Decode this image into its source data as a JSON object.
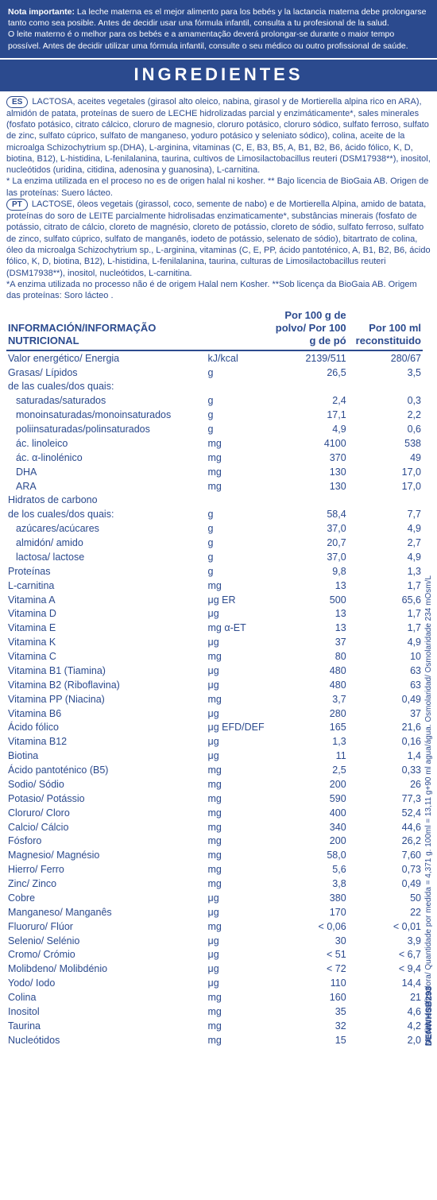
{
  "notice": {
    "label": "Nota importante:",
    "text_es": "La leche materna es el mejor alimento para los bebés y la lactancia materna debe prolongarse tanto como sea posible. Antes de decidir usar una fórmula infantil, consulta a tu profesional de la salud.",
    "text_pt": "O leite materno é o melhor para os bebés e a amamentação deverá prolongar-se durante o maior tempo possível. Antes de decidir utilizar uma fórmula infantil, consulte o seu médico ou outro profissional de saúde."
  },
  "header": "INGREDIENTES",
  "ingredients": {
    "es_tag": "ES",
    "es_text": "LACTOSA, aceites vegetales (girasol alto oleico, nabina, girasol y de Mortierella alpina rico en ARA), almidón de patata, proteínas de suero de LECHE hidrolizadas parcial y enzimáticamente*, sales minerales (fosfato potásico, citrato cálcico, cloruro de magnesio, cloruro potásico, cloruro sódico, sulfato ferroso, sulfato de zinc, sulfato cúprico, sulfato de manganeso, yoduro potásico y seleniato sódico), colina, aceite de la microalga Schizochytrium sp.(DHA), L-arginina, vitaminas (C, E, B3, B5, A, B1, B2, B6, ácido fólico, K, D, biotina, B12), L-histidina, L-fenilalanina, taurina, cultivos de Limosilactobacillus reuteri (DSM17938**), inositol, nucleótidos (uridina, citidina, adenosina y guanosina), L-carnitina.",
    "es_note": "* La enzima utilizada en el proceso no es de origen halal ni kosher. ** Bajo licencia de BioGaia AB. Origen de las proteínas: Suero lácteo.",
    "pt_tag": "PT",
    "pt_text": "LACTOSE, óleos vegetais (girassol, coco, semente de nabo) e de Mortierella Alpina, amido de batata, proteínas do soro de LEITE parcialmente hidrolisadas enzimaticamente*, substâncias minerais (fosfato de potássio, citrato de cálcio, cloreto de magnésio, cloreto de potássio, cloreto de sódio, sulfato ferroso, sulfato de zinco, sulfato cúprico, sulfato de manganês, iodeto de potássio, selenato de sódio), bitartrato de colina, óleo da microalga Schizochytrium sp., L-arginina, vitaminas (C, E, PP, ácido pantoténico, A, B1, B2, B6, ácido fólico, K, D, biotina, B12), L-histidina, L-fenilalanina, taurina, culturas de Limosilactobacillus reuteri (DSM17938**), inositol, nucleótidos, L-carnitina.",
    "pt_note": "*A enzima utilizada no processo não é de origem Halal nem Kosher. **Sob licença da BioGaia AB. Origem das proteínas: Soro lácteo ."
  },
  "table": {
    "col0": "INFORMACIÓN/INFORMAÇÃO NUTRICIONAL",
    "col2": "Por 100 g de polvo/ Por 100 g de pó",
    "col3": "Por 100 ml reconstituido",
    "rows": [
      {
        "n": "Valor energético/ Energia",
        "u": "kJ/kcal",
        "a": "2139/511",
        "b": "280/67"
      },
      {
        "n": "Grasas/ Lípidos",
        "u": "g",
        "a": "26,5",
        "b": "3,5"
      },
      {
        "n": "de las cuales/dos quais:",
        "u": "",
        "a": "",
        "b": ""
      },
      {
        "n": "saturadas/saturados",
        "u": "g",
        "a": "2,4",
        "b": "0,3",
        "i": 1
      },
      {
        "n": "monoinsaturadas/monoinsaturados",
        "u": "g",
        "a": "17,1",
        "b": "2,2",
        "i": 1
      },
      {
        "n": "poliinsaturadas/polinsaturados",
        "u": "g",
        "a": "4,9",
        "b": "0,6",
        "i": 1
      },
      {
        "n": "ác. linoleico",
        "u": "mg",
        "a": "4100",
        "b": "538",
        "i": 1
      },
      {
        "n": "ác. α-linolénico",
        "u": "mg",
        "a": "370",
        "b": "49",
        "i": 1
      },
      {
        "n": "DHA",
        "u": "mg",
        "a": "130",
        "b": "17,0",
        "i": 1
      },
      {
        "n": "ARA",
        "u": "mg",
        "a": "130",
        "b": "17,0",
        "i": 1
      },
      {
        "n": "Hidratos de carbono",
        "u": "",
        "a": "",
        "b": ""
      },
      {
        "n": "de los cuales/dos quais:",
        "u": "g",
        "a": "58,4",
        "b": "7,7"
      },
      {
        "n": "azúcares/acúcares",
        "u": "g",
        "a": "37,0",
        "b": "4,9",
        "i": 1
      },
      {
        "n": "almidón/ amido",
        "u": "g",
        "a": "20,7",
        "b": "2,7",
        "i": 1
      },
      {
        "n": "lactosa/ lactose",
        "u": "g",
        "a": "37,0",
        "b": "4,9",
        "i": 1
      },
      {
        "n": "Proteínas",
        "u": "g",
        "a": "9,8",
        "b": "1,3"
      },
      {
        "n": "L-carnitina",
        "u": "mg",
        "a": "13",
        "b": "1,7"
      },
      {
        "n": "Vitamina A",
        "u": "μg ER",
        "a": "500",
        "b": "65,6"
      },
      {
        "n": "Vitamina D",
        "u": "μg",
        "a": "13",
        "b": "1,7"
      },
      {
        "n": "Vitamina E",
        "u": "mg α-ET",
        "a": "13",
        "b": "1,7"
      },
      {
        "n": "Vitamina K",
        "u": "μg",
        "a": "37",
        "b": "4,9"
      },
      {
        "n": "Vitamina C",
        "u": "mg",
        "a": "80",
        "b": "10"
      },
      {
        "n": "Vitamina B1 (Tiamina)",
        "u": "μg",
        "a": "480",
        "b": "63"
      },
      {
        "n": "Vitamina B2 (Riboflavina)",
        "u": "μg",
        "a": "480",
        "b": "63"
      },
      {
        "n": "Vitamina PP (Niacina)",
        "u": "mg",
        "a": "3,7",
        "b": "0,49"
      },
      {
        "n": "Vitamina B6",
        "u": "μg",
        "a": "280",
        "b": "37"
      },
      {
        "n": "Ácido fólico",
        "u": "μg EFD/DEF",
        "a": "165",
        "b": "21,6"
      },
      {
        "n": "Vitamina B12",
        "u": "μg",
        "a": "1,3",
        "b": "0,16"
      },
      {
        "n": "Biotina",
        "u": "μg",
        "a": "11",
        "b": "1,4"
      },
      {
        "n": "Ácido pantoténico (B5)",
        "u": "mg",
        "a": "2,5",
        "b": "0,33"
      },
      {
        "n": "Sodio/ Sódio",
        "u": "mg",
        "a": "200",
        "b": "26"
      },
      {
        "n": "Potasio/ Potássio",
        "u": "mg",
        "a": "590",
        "b": "77,3"
      },
      {
        "n": "Cloruro/ Cloro",
        "u": "mg",
        "a": "400",
        "b": "52,4"
      },
      {
        "n": "Calcio/ Cálcio",
        "u": "mg",
        "a": "340",
        "b": "44,6"
      },
      {
        "n": "Fósforo",
        "u": "mg",
        "a": "200",
        "b": "26,2"
      },
      {
        "n": "Magnesio/ Magnésio",
        "u": "mg",
        "a": "58,0",
        "b": "7,60"
      },
      {
        "n": "Hierro/ Ferro",
        "u": "mg",
        "a": "5,6",
        "b": "0,73"
      },
      {
        "n": "Zinc/ Zinco",
        "u": "mg",
        "a": "3,8",
        "b": "0,49"
      },
      {
        "n": "Cobre",
        "u": "μg",
        "a": "380",
        "b": "50"
      },
      {
        "n": "Manganeso/ Manganês",
        "u": "μg",
        "a": "170",
        "b": "22"
      },
      {
        "n": "Fluoruro/ Flúor",
        "u": "mg",
        "a": "< 0,06",
        "b": "< 0,01"
      },
      {
        "n": "Selenio/ Selénio",
        "u": "μg",
        "a": "30",
        "b": "3,9"
      },
      {
        "n": "Cromo/ Crómio",
        "u": "μg",
        "a": "< 51",
        "b": "< 6,7"
      },
      {
        "n": "Molibdeno/ Molibdénio",
        "u": "μg",
        "a": "< 72",
        "b": "< 9,4"
      },
      {
        "n": "Yodo/ Iodo",
        "u": "μg",
        "a": "110",
        "b": "14,4"
      },
      {
        "n": "Colina",
        "u": "mg",
        "a": "160",
        "b": "21"
      },
      {
        "n": "Inositol",
        "u": "mg",
        "a": "35",
        "b": "4,6"
      },
      {
        "n": "Taurina",
        "u": "mg",
        "a": "32",
        "b": "4,2"
      },
      {
        "n": "Nucleótidos",
        "u": "mg",
        "a": "15",
        "b": "2,0"
      }
    ]
  },
  "side_text": "Medida dosificadora/ Quantidade por medida = 4,371 g. 100ml = 13,11 g+90 ml agua/água.   Osmolaridad/ Osmolaridade 234 mOsm/L",
  "side_code": "DENWHSB293",
  "colors": {
    "brand": "#2b4a8e",
    "white": "#ffffff"
  }
}
